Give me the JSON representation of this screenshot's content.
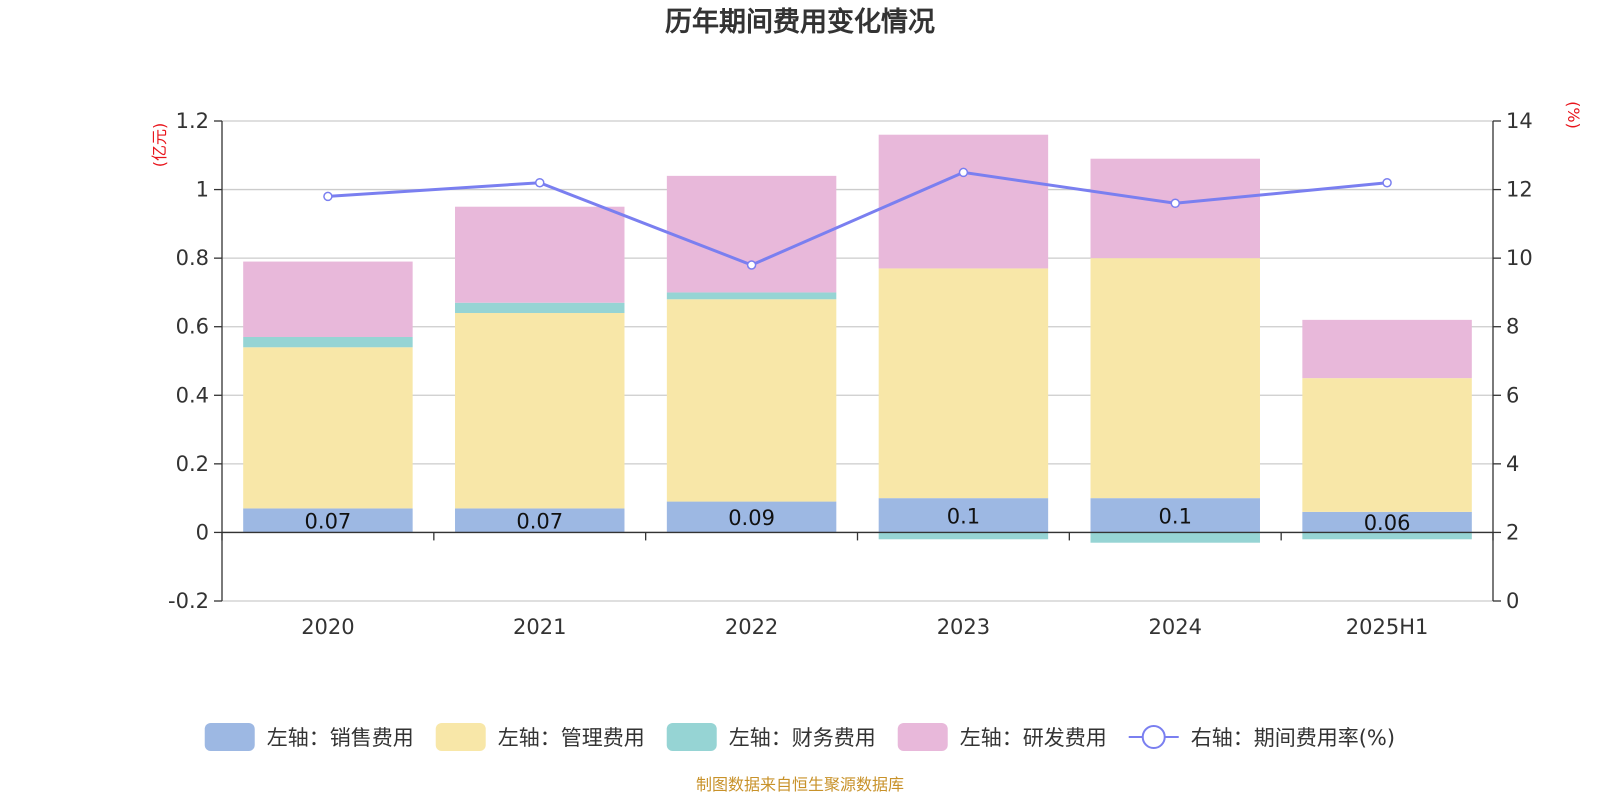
{
  "chart_data": {
    "type": "bar",
    "title": "历年期间费用变化情况",
    "categories": [
      "2020",
      "2021",
      "2022",
      "2023",
      "2024",
      "2025H1"
    ],
    "y_left": {
      "unit": "(亿元)",
      "ylim": [
        -0.2,
        1.2
      ],
      "ticks": [
        "1.2",
        "1",
        "0.8",
        "0.6",
        "0.4",
        "0.2",
        "0",
        "-0.2"
      ],
      "tick_values": [
        1.2,
        1,
        0.8,
        0.6,
        0.4,
        0.2,
        0,
        -0.2
      ]
    },
    "y_right": {
      "unit": "(%)",
      "ylim": [
        0,
        14
      ],
      "ticks": [
        "14",
        "12",
        "10",
        "8",
        "6",
        "4",
        "2",
        "0"
      ],
      "tick_values": [
        14,
        12,
        10,
        8,
        6,
        4,
        2,
        0
      ]
    },
    "series": [
      {
        "name": "左轴：销售费用",
        "color": "#9db8e3",
        "stacked": true,
        "axis": "left",
        "values": [
          0.07,
          0.07,
          0.09,
          0.1,
          0.1,
          0.06
        ],
        "labels": [
          "0.07",
          "0.07",
          "0.09",
          "0.1",
          "0.1",
          "0.06"
        ]
      },
      {
        "name": "左轴：管理费用",
        "color": "#f8e7a8",
        "stacked": true,
        "axis": "left",
        "values": [
          0.47,
          0.57,
          0.59,
          0.67,
          0.7,
          0.39
        ]
      },
      {
        "name": "左轴：财务费用",
        "color": "#96d4d4",
        "stacked": true,
        "axis": "left",
        "values": [
          0.03,
          0.03,
          0.02,
          -0.02,
          -0.03,
          -0.02
        ]
      },
      {
        "name": "左轴：研发费用",
        "color": "#e8b8da",
        "stacked": true,
        "axis": "left",
        "values": [
          0.22,
          0.28,
          0.34,
          0.39,
          0.29,
          0.17
        ]
      },
      {
        "name": "右轴：期间费用率(%)",
        "color": "#7a7ff0",
        "type": "line",
        "axis": "right",
        "values": [
          11.8,
          12.2,
          9.8,
          12.5,
          11.6,
          12.2
        ]
      }
    ],
    "grid": true,
    "legend_position": "bottom",
    "source_note": "制图数据来自恒生聚源数据库"
  }
}
